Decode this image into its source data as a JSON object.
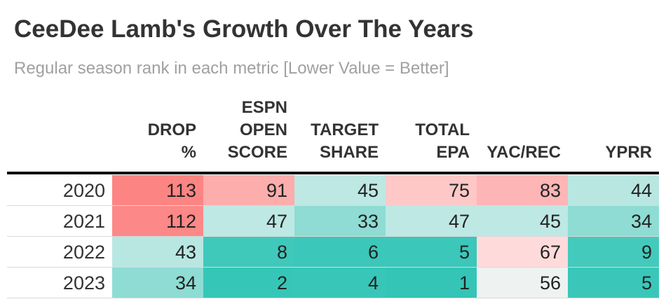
{
  "title": "CeeDee Lamb's Growth Over The Years",
  "subtitle": "Regular season rank in each metric [Lower Value = Better]",
  "chart_data": {
    "type": "table",
    "title": "CeeDee Lamb's Growth Over The Years",
    "subtitle": "Regular season rank in each metric [Lower Value = Better]",
    "columns": [
      "DROP\n%",
      "ESPN\nOPEN\nSCORE",
      "TARGET\nSHARE",
      "TOTAL\nEPA",
      "YAC/REC",
      "YPRR"
    ],
    "rows": [
      {
        "year": "2020",
        "values": [
          113,
          91,
          45,
          75,
          83,
          44
        ]
      },
      {
        "year": "2021",
        "values": [
          112,
          47,
          33,
          47,
          45,
          34
        ]
      },
      {
        "year": "2022",
        "values": [
          43,
          8,
          6,
          5,
          67,
          9
        ]
      },
      {
        "year": "2023",
        "values": [
          34,
          2,
          4,
          1,
          56,
          5
        ]
      }
    ],
    "cell_colors": [
      [
        "#fc8583",
        "#fdadac",
        "#bde8e4",
        "#fec8c7",
        "#fdb6b5",
        "#b8e7e2"
      ],
      [
        "#fc8887",
        "#bde8e4",
        "#8edcd4",
        "#bde8e4",
        "#bde8e4",
        "#8edcd4"
      ],
      [
        "#b8e7e2",
        "#3fc9bb",
        "#3bc7b9",
        "#3bc7b9",
        "#fedbda",
        "#44cabc"
      ],
      [
        "#8edcd4",
        "#36c6b7",
        "#38c6b8",
        "#34c5b6",
        "#eef2f1",
        "#3ac7b9"
      ]
    ]
  }
}
